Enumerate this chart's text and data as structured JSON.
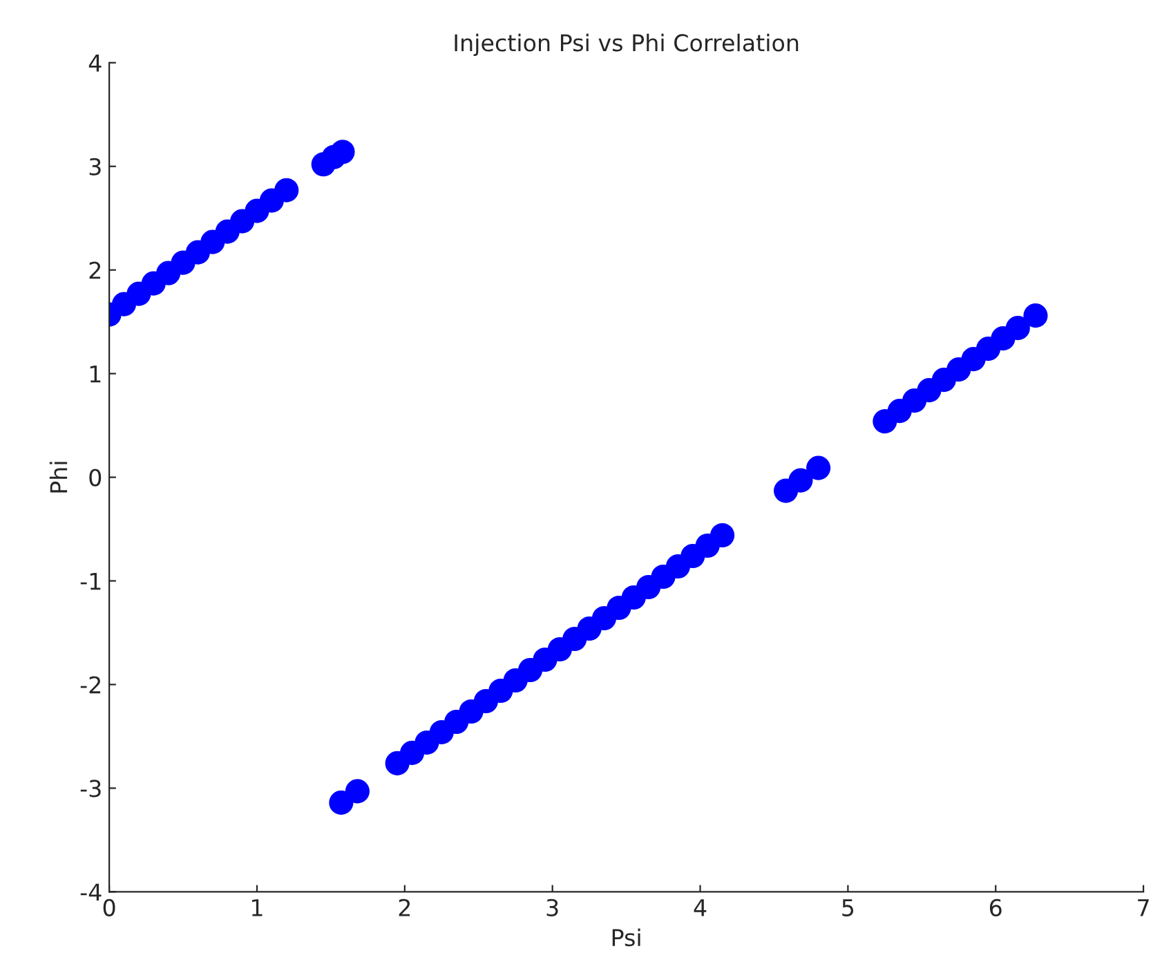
{
  "chart_data": {
    "type": "scatter",
    "title": "Injection Psi vs Phi Correlation",
    "xlabel": "Psi",
    "ylabel": "Phi",
    "x": [
      0,
      0.1,
      0.2,
      0.3,
      0.4,
      0.5,
      0.6,
      0.7,
      0.8,
      0.9,
      1.0,
      1.1,
      1.2,
      1.45,
      1.52,
      1.58,
      1.57,
      1.68,
      1.95,
      2.05,
      2.15,
      2.25,
      2.35,
      2.45,
      2.55,
      2.65,
      2.75,
      2.85,
      2.95,
      3.05,
      3.15,
      3.25,
      3.35,
      3.45,
      3.55,
      3.65,
      3.75,
      3.85,
      3.95,
      4.05,
      4.15,
      4.58,
      4.68,
      4.8,
      5.25,
      5.35,
      5.45,
      5.55,
      5.65,
      5.75,
      5.85,
      5.95,
      6.05,
      6.15,
      6.27
    ],
    "series": [
      {
        "color": "#0000ff",
        "values": [
          1.57,
          1.67,
          1.77,
          1.87,
          1.97,
          2.07,
          2.17,
          2.27,
          2.37,
          2.47,
          2.57,
          2.67,
          2.77,
          3.02,
          3.09,
          3.14,
          -3.14,
          -3.03,
          -2.76,
          -2.66,
          -2.56,
          -2.46,
          -2.36,
          -2.26,
          -2.16,
          -2.06,
          -1.96,
          -1.86,
          -1.76,
          -1.66,
          -1.56,
          -1.46,
          -1.36,
          -1.26,
          -1.16,
          -1.06,
          -0.96,
          -0.86,
          -0.76,
          -0.66,
          -0.56,
          -0.13,
          -0.03,
          0.09,
          0.54,
          0.64,
          0.74,
          0.84,
          0.94,
          1.04,
          1.14,
          1.24,
          1.34,
          1.44,
          1.56
        ]
      }
    ],
    "xlim": [
      0,
      7
    ],
    "ylim": [
      -4,
      4
    ],
    "xticks": [
      0,
      1,
      2,
      3,
      4,
      5,
      6,
      7
    ],
    "yticks": [
      -4,
      -3,
      -2,
      -1,
      0,
      1,
      2,
      3,
      4
    ],
    "marker": "circle",
    "grid": false,
    "legend": false
  }
}
